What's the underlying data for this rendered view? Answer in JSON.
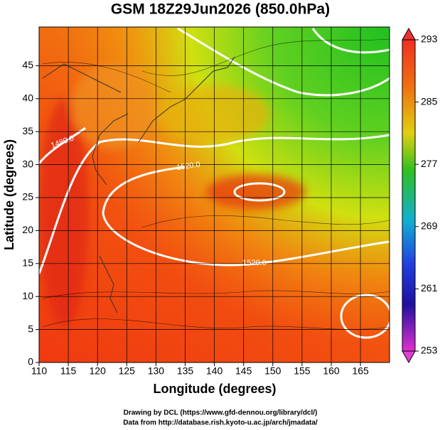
{
  "header": {
    "title": "GSM 18Z29Jun2026 (850.0hPa)"
  },
  "axes": {
    "xlabel": "Longitude (degrees)",
    "ylabel": "Latitude  (degrees)",
    "xticks": [
      110,
      115,
      120,
      125,
      130,
      135,
      140,
      145,
      150,
      155,
      160,
      165
    ],
    "yticks": [
      0,
      5,
      10,
      15,
      20,
      25,
      30,
      35,
      40,
      45
    ]
  },
  "colorbar": {
    "ticks": [
      293,
      285,
      277,
      269,
      261,
      253
    ]
  },
  "contour_labels": [
    "1520.0",
    "1480.0",
    "1520.0"
  ],
  "footer": {
    "line1": "Drawing by DCL (https://www.gfd-dennou.org/library/dcl/)",
    "line2": "Data from http://database.rish.kyoto-u.ac.jp/arch/jmadata/"
  }
}
